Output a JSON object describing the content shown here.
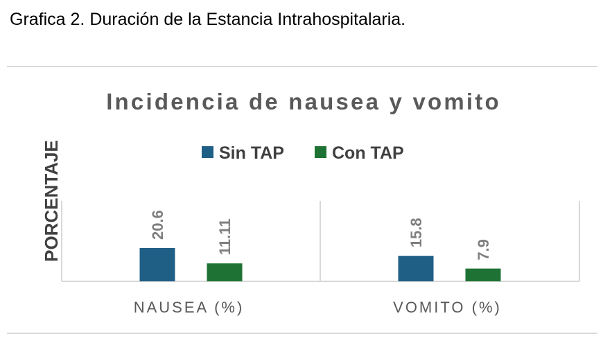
{
  "caption": "Grafica 2. Duración de la Estancia Intrahospitalaria.",
  "chart_data": {
    "type": "bar",
    "title": "Incidencia de nausea y vomito",
    "ylabel": "PORCENTAJE",
    "xlabel": "",
    "categories": [
      "NAUSEA (%)",
      "VOMITO (%)"
    ],
    "series": [
      {
        "name": "Sin TAP",
        "color": "#1f5f86",
        "values": [
          20.6,
          15.8
        ],
        "labels": [
          "20.6",
          "15.8"
        ]
      },
      {
        "name": "Con TAP",
        "color": "#1e7334",
        "values": [
          11.11,
          7.9
        ],
        "labels": [
          "11.11",
          "7.9"
        ]
      }
    ],
    "legend": "top-center",
    "grid": false,
    "colors": {
      "axis": "#d9d9d9",
      "text": "#595959",
      "labels": "#7f7f7f"
    }
  }
}
